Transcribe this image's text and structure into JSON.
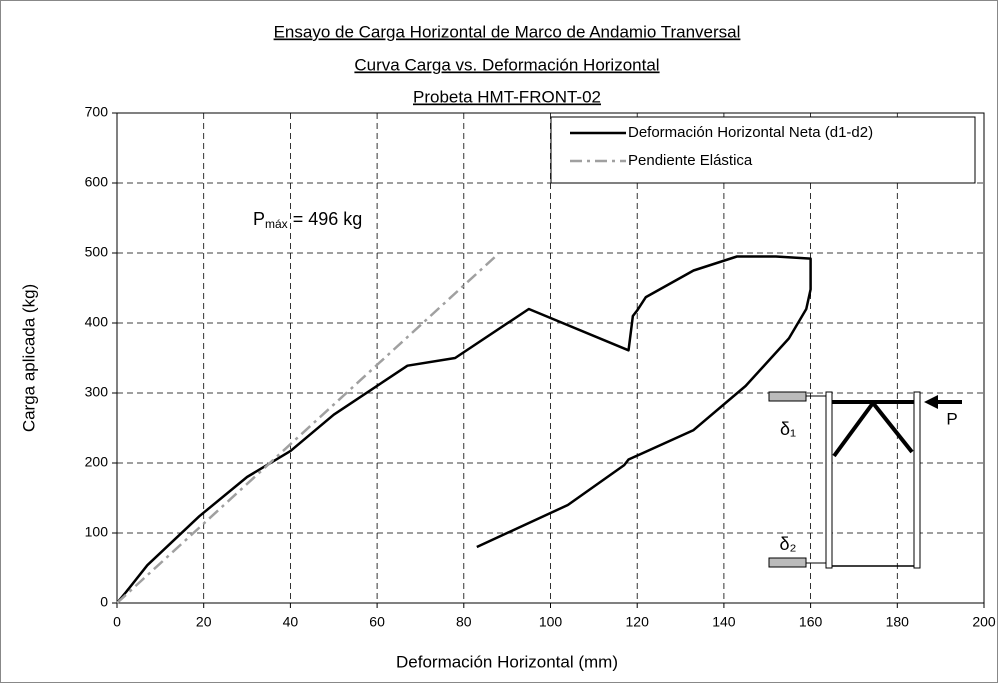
{
  "chart_data": {
    "type": "line",
    "title": [
      "Ensayo de Carga Horizontal de Marco de Andamio Tranversal",
      "Curva Carga vs. Deformación Horizontal",
      "Probeta HMT-FRONT-02"
    ],
    "x_label": "Deformación Horizontal (mm)",
    "y_label": "Carga aplicada (kg)",
    "xlim": [
      0,
      200
    ],
    "xticks": [
      0,
      20,
      40,
      60,
      80,
      100,
      120,
      140,
      160,
      180,
      200
    ],
    "ylim": [
      0,
      700
    ],
    "yticks": [
      0,
      100,
      200,
      300,
      400,
      500,
      600,
      700
    ],
    "grid": true,
    "legend": "upper right",
    "annotation": {
      "main": "P",
      "sub": "máx",
      "rest": " = 496 kg"
    },
    "diagram_labels": [
      "δ₁",
      "δ₂",
      "P"
    ],
    "series": [
      {
        "name": "Deformación Horizontal Neta (d1-d2)",
        "color": "#000000",
        "style": "solid",
        "x": [
          0,
          2,
          7,
          19,
          30,
          40,
          50,
          67,
          78,
          95,
          118,
          119,
          120,
          122,
          133,
          143,
          152,
          160,
          160,
          159,
          155,
          145,
          133,
          118,
          117,
          104,
          83
        ],
        "values": [
          0,
          15,
          54,
          124,
          180,
          217,
          269,
          339,
          350,
          420,
          361,
          410,
          418,
          437,
          475,
          495,
          495,
          492,
          448,
          420,
          378,
          310,
          247,
          205,
          197,
          140,
          80
        ]
      },
      {
        "name": "Pendiente Elástica",
        "color": "#a0a0a0",
        "style": "dashdot",
        "x": [
          0,
          88
        ],
        "values": [
          0,
          499
        ]
      }
    ]
  }
}
